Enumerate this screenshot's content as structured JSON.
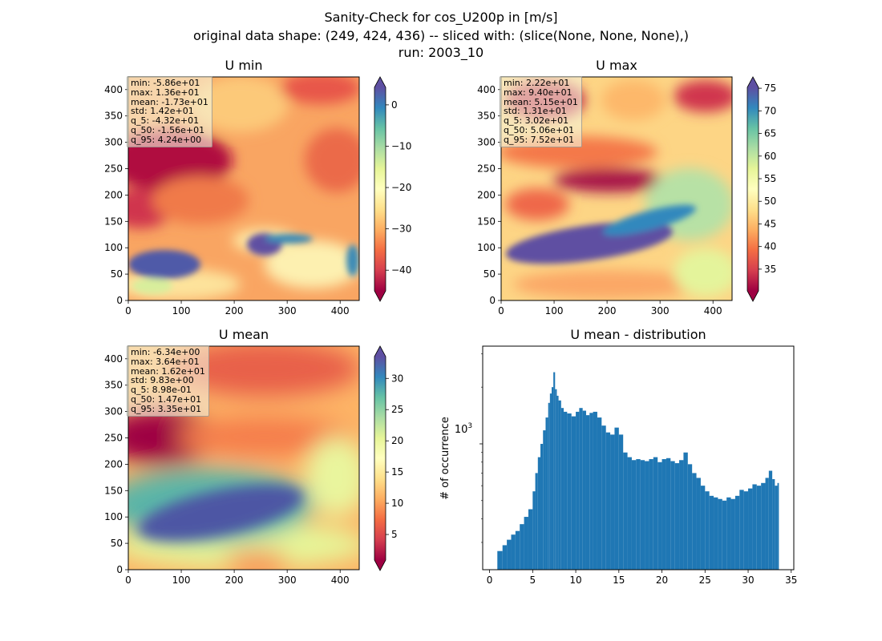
{
  "figure": {
    "title_line1": "Sanity-Check for cos_U200p in [m/s]",
    "title_line2": "original data shape: (249, 424, 436) -- sliced with: (slice(None, None, None),)",
    "title_line3": "run: 2003_10"
  },
  "panels": {
    "umin": {
      "title": "U min",
      "stats": [
        "min: -5.86e+01",
        "max: 1.36e+01",
        "mean: -1.73e+01",
        "std: 1.42e+01",
        "q_5: -4.32e+01",
        "q_50: -1.56e+01",
        "q_95: 4.24e+00"
      ],
      "colorbar_ticks": [
        "0",
        "−10",
        "−20",
        "−30",
        "−40"
      ],
      "colorbar_range": [
        -45,
        4.24
      ],
      "colormap": "Spectral",
      "x_ticks": [
        "0",
        "100",
        "200",
        "300",
        "400"
      ],
      "y_ticks": [
        "0",
        "50",
        "100",
        "150",
        "200",
        "250",
        "300",
        "350",
        "400"
      ]
    },
    "umax": {
      "title": "U max",
      "stats": [
        "min: 2.22e+01",
        "max: 9.40e+01",
        "mean: 5.15e+01",
        "std: 1.31e+01",
        "q_5: 3.02e+01",
        "q_50: 5.06e+01",
        "q_95: 7.52e+01"
      ],
      "colorbar_ticks": [
        "75",
        "70",
        "65",
        "60",
        "55",
        "50",
        "45",
        "40",
        "35"
      ],
      "colorbar_range": [
        30.2,
        75.2
      ],
      "colormap": "Spectral",
      "x_ticks": [
        "0",
        "100",
        "200",
        "300",
        "400"
      ],
      "y_ticks": [
        "0",
        "50",
        "100",
        "150",
        "200",
        "250",
        "300",
        "350",
        "400"
      ]
    },
    "umean": {
      "title": "U mean",
      "stats": [
        "min: -6.34e+00",
        "max: 3.64e+01",
        "mean: 1.62e+01",
        "std: 9.83e+00",
        "q_5: 8.98e-01",
        "q_50: 1.47e+01",
        "q_95: 3.35e+01"
      ],
      "colorbar_ticks": [
        "30",
        "25",
        "20",
        "15",
        "10",
        "5"
      ],
      "colorbar_range": [
        0.9,
        33.5
      ],
      "colormap": "Spectral",
      "x_ticks": [
        "0",
        "100",
        "200",
        "300",
        "400"
      ],
      "y_ticks": [
        "0",
        "50",
        "100",
        "150",
        "200",
        "250",
        "300",
        "350",
        "400"
      ]
    },
    "hist": {
      "title": "U mean - distribution",
      "ylabel": "# of occurrence",
      "ytick_label": "10",
      "ytick_exp": "3",
      "x_ticks": [
        "0",
        "5",
        "10",
        "15",
        "20",
        "25",
        "30",
        "35"
      ]
    }
  },
  "colors": {
    "bar": "#1f77b4",
    "axis": "#000000",
    "background": "#ffffff"
  },
  "chart_data": [
    {
      "type": "heatmap",
      "title": "U min",
      "xlim": [
        0,
        436
      ],
      "ylim": [
        0,
        424
      ],
      "colorbar_range": [
        -45,
        4.24
      ],
      "colormap": "Spectral"
    },
    {
      "type": "heatmap",
      "title": "U max",
      "xlim": [
        0,
        436
      ],
      "ylim": [
        0,
        424
      ],
      "colorbar_range": [
        30.2,
        75.2
      ],
      "colormap": "Spectral"
    },
    {
      "type": "heatmap",
      "title": "U mean",
      "xlim": [
        0,
        436
      ],
      "ylim": [
        0,
        424
      ],
      "colorbar_range": [
        0.9,
        33.5
      ],
      "colormap": "Spectral"
    },
    {
      "type": "bar",
      "title": "U mean - distribution",
      "ylabel": "# of occurrence",
      "xlabel": "",
      "yscale": "log",
      "xlim": [
        -0.8,
        35.3
      ],
      "ylim": [
        215,
        3300
      ],
      "bin_width": 0.17,
      "bins": [
        [
          0.9,
          270
        ],
        [
          1.5,
          290
        ],
        [
          2.0,
          310
        ],
        [
          2.5,
          330
        ],
        [
          3.0,
          345
        ],
        [
          3.5,
          375
        ],
        [
          4.0,
          410
        ],
        [
          4.5,
          450
        ],
        [
          5.0,
          560
        ],
        [
          5.3,
          700
        ],
        [
          5.6,
          850
        ],
        [
          5.9,
          1000
        ],
        [
          6.2,
          1180
        ],
        [
          6.5,
          1380
        ],
        [
          6.8,
          1650
        ],
        [
          7.0,
          1850
        ],
        [
          7.2,
          2000
        ],
        [
          7.4,
          2400
        ],
        [
          7.6,
          1950
        ],
        [
          7.8,
          1800
        ],
        [
          8.0,
          1700
        ],
        [
          8.3,
          1550
        ],
        [
          8.6,
          1480
        ],
        [
          9.0,
          1450
        ],
        [
          9.5,
          1400
        ],
        [
          10.0,
          1480
        ],
        [
          10.4,
          1550
        ],
        [
          10.8,
          1500
        ],
        [
          11.2,
          1420
        ],
        [
          11.6,
          1460
        ],
        [
          12.0,
          1480
        ],
        [
          12.5,
          1380
        ],
        [
          13.0,
          1250
        ],
        [
          13.5,
          1150
        ],
        [
          14.0,
          1120
        ],
        [
          14.5,
          1220
        ],
        [
          15.0,
          1120
        ],
        [
          15.5,
          900
        ],
        [
          16.0,
          850
        ],
        [
          16.5,
          820
        ],
        [
          17.0,
          830
        ],
        [
          17.5,
          820
        ],
        [
          18.0,
          810
        ],
        [
          18.5,
          830
        ],
        [
          19.0,
          850
        ],
        [
          19.5,
          800
        ],
        [
          20.0,
          830
        ],
        [
          20.5,
          840
        ],
        [
          21.0,
          810
        ],
        [
          21.5,
          790
        ],
        [
          22.0,
          820
        ],
        [
          22.5,
          900
        ],
        [
          23.0,
          780
        ],
        [
          23.5,
          700
        ],
        [
          24.0,
          660
        ],
        [
          24.5,
          600
        ],
        [
          25.0,
          560
        ],
        [
          25.5,
          530
        ],
        [
          26.0,
          520
        ],
        [
          26.5,
          510
        ],
        [
          27.0,
          500
        ],
        [
          27.5,
          520
        ],
        [
          28.0,
          510
        ],
        [
          28.5,
          530
        ],
        [
          29.0,
          570
        ],
        [
          29.5,
          560
        ],
        [
          30.0,
          580
        ],
        [
          30.5,
          610
        ],
        [
          31.0,
          600
        ],
        [
          31.5,
          620
        ],
        [
          32.0,
          660
        ],
        [
          32.4,
          720
        ],
        [
          32.8,
          650
        ],
        [
          33.1,
          600
        ],
        [
          33.4,
          620
        ]
      ]
    }
  ]
}
